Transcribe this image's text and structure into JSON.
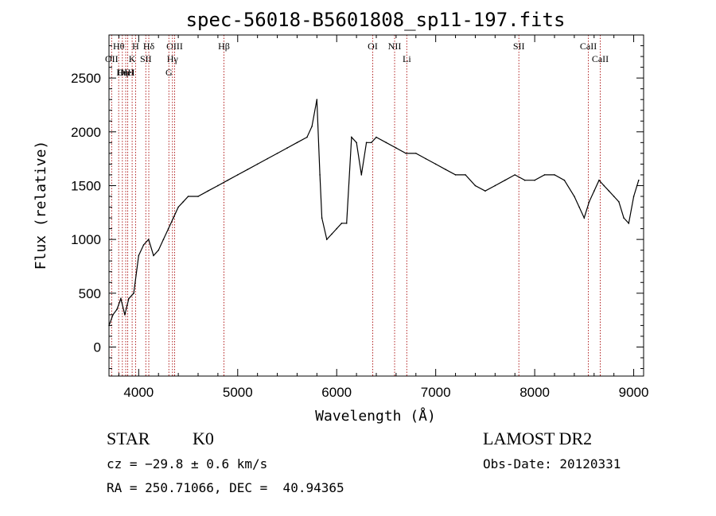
{
  "chart_data": {
    "type": "line",
    "title": "spec-56018-B5601808_sp11-197.fits",
    "xlabel": "Wavelength (Å)",
    "ylabel": "Flux (relative)",
    "xlim": [
      3700,
      9100
    ],
    "ylim": [
      -270,
      2900
    ],
    "x_ticks": [
      4000,
      5000,
      6000,
      7000,
      8000,
      9000
    ],
    "y_ticks": [
      0,
      500,
      1000,
      1500,
      2000,
      2500
    ],
    "grid": false,
    "line_color": "#000000",
    "marker_color": "#b22222",
    "lines": [
      {
        "label": "Hθ",
        "x": 3798
      },
      {
        "label": "OII",
        "x": 3727
      },
      {
        "label": "OIII",
        "x": 3869
      },
      {
        "label": "Hη",
        "x": 3835
      },
      {
        "label": "K",
        "x": 3934
      },
      {
        "label": "HeI",
        "x": 3889
      },
      {
        "label": "H",
        "x": 3969
      },
      {
        "label": "SII",
        "x": 4072
      },
      {
        "label": "Hδ",
        "x": 4102
      },
      {
        "label": "OIII",
        "x": 4363
      },
      {
        "label": "Hγ",
        "x": 4341
      },
      {
        "label": "G",
        "x": 4305
      },
      {
        "label": "Hβ",
        "x": 4861
      },
      {
        "label": "OI",
        "x": 6364
      },
      {
        "label": "NII",
        "x": 6585
      },
      {
        "label": "Li",
        "x": 6708
      },
      {
        "label": "SII",
        "x": 7840
      },
      {
        "label": "CaII",
        "x": 8542
      },
      {
        "label": "CaII",
        "x": 8662
      }
    ],
    "series": [
      {
        "x": [
          3700,
          3740,
          3780,
          3820,
          3860,
          3900,
          3950,
          4000,
          4050,
          4100,
          4150,
          4200,
          4250,
          4300,
          4350,
          4400,
          4450,
          4500,
          4600,
          4700,
          4800,
          4900,
          5000,
          5100,
          5200,
          5300,
          5400,
          5500,
          5600,
          5700,
          5750,
          5800,
          5830,
          5850,
          5900,
          5950,
          6000,
          6050,
          6100,
          6150,
          6200,
          6250,
          6300,
          6350,
          6400,
          6500,
          6600,
          6700,
          6800,
          6900,
          7000,
          7100,
          7200,
          7300,
          7400,
          7500,
          7600,
          7700,
          7800,
          7900,
          8000,
          8100,
          8200,
          8300,
          8400,
          8450,
          8500,
          8550,
          8600,
          8650,
          8700,
          8750,
          8800,
          8850,
          8900,
          8950,
          9000,
          9050
        ],
        "y": [
          200,
          300,
          350,
          450,
          300,
          450,
          500,
          850,
          950,
          1000,
          850,
          900,
          1000,
          1100,
          1200,
          1300,
          1350,
          1400,
          1400,
          1450,
          1500,
          1550,
          1600,
          1650,
          1700,
          1750,
          1800,
          1850,
          1900,
          1950,
          2050,
          2300,
          1600,
          1200,
          1000,
          1050,
          1100,
          1150,
          1150,
          1950,
          1900,
          1600,
          1900,
          1900,
          1950,
          1900,
          1850,
          1800,
          1800,
          1750,
          1700,
          1650,
          1600,
          1600,
          1500,
          1450,
          1500,
          1550,
          1600,
          1550,
          1550,
          1600,
          1600,
          1550,
          1400,
          1300,
          1200,
          1350,
          1450,
          1550,
          1500,
          1450,
          1400,
          1350,
          1200,
          1150,
          1400,
          1550
        ]
      }
    ]
  },
  "info": {
    "object_class": "STAR",
    "subclass": "K0",
    "survey": "LAMOST DR2",
    "redshift": "cz = −29.8 ± 0.6 km/s",
    "obs_date": "Obs-Date: 20120331",
    "coords": "RA = 250.71066, DEC =  40.94365"
  }
}
